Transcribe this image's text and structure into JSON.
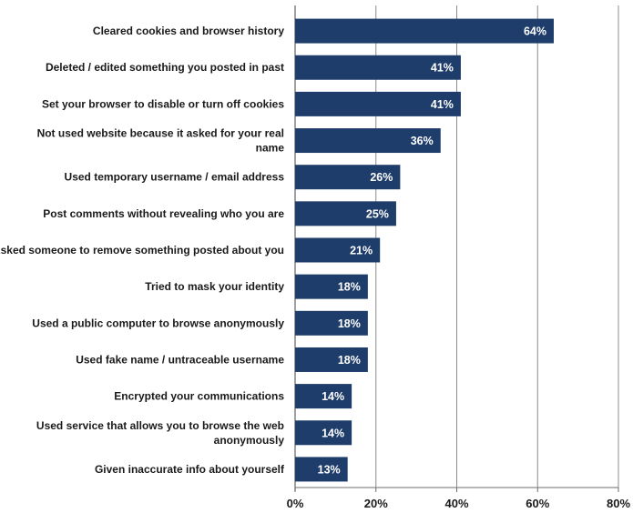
{
  "chart_data": {
    "type": "bar",
    "orientation": "horizontal",
    "categories": [
      "Cleared cookies and browser history",
      "Deleted / edited something you posted in past",
      "Set your browser to disable or turn off cookies",
      "Not used website because it asked for your real name",
      "Used temporary username / email address",
      "Post comments without revealing who you are",
      "Asked someone to remove something posted about you",
      "Tried to mask your identity",
      "Used a public computer to browse anonymously",
      "Used fake name / untraceable username",
      "Encrypted your communications",
      "Used service that allows you to browse the web anonymously",
      "Given inaccurate info about yourself"
    ],
    "values": [
      64,
      41,
      41,
      36,
      26,
      25,
      21,
      18,
      18,
      18,
      14,
      14,
      13
    ],
    "value_labels": [
      "64%",
      "41%",
      "41%",
      "36%",
      "26%",
      "25%",
      "21%",
      "18%",
      "18%",
      "18%",
      "14%",
      "14%",
      "13%"
    ],
    "xlim": [
      0,
      80
    ],
    "xticks": [
      "0%",
      "20%",
      "40%",
      "60%",
      "80%"
    ],
    "grid": true,
    "bar_color": "#1f3d6b",
    "grid_color": "#8c8c8c"
  }
}
